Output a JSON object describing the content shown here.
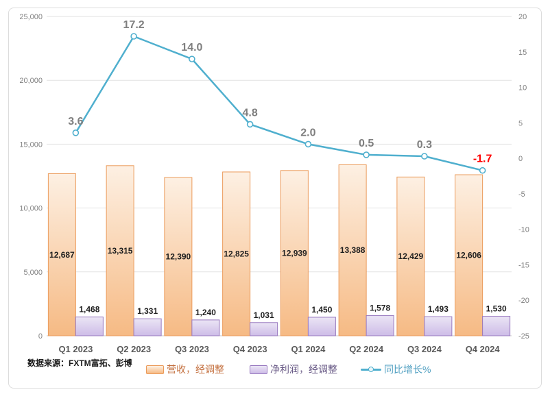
{
  "source_note": "数据来源：FXTM富拓、彭博",
  "legend": {
    "items": [
      {
        "name": "revenue",
        "label": "营收，经调整"
      },
      {
        "name": "profit",
        "label": "净利润，经调整"
      },
      {
        "name": "yoy",
        "label": "同比增长%"
      }
    ]
  },
  "colors": {
    "revenue_border": "#EB9B5B",
    "revenue_fill_top": "#FDF0E3",
    "revenue_fill_bottom": "#F6BA84",
    "profit_border": "#9879BF",
    "profit_fill_top": "#EBE5F5",
    "profit_fill_bottom": "#CDBCE7",
    "line": "#4FAFCE",
    "marker_fill": "#FFFFFF",
    "grid": "#E2E2E2",
    "axis_line": "#C6C6C6",
    "tick_text": "#808080",
    "xaxis_text": "#595959",
    "bar_label_text": "#1F1F1F",
    "line_label_gray": "#7F7F7F",
    "line_label_red": "#FF0000"
  },
  "chart_data": {
    "type": "combo",
    "categories": [
      "Q1 2023",
      "Q2 2023",
      "Q3 2023",
      "Q4 2023",
      "Q1 2024",
      "Q2 2024",
      "Q3 2024",
      "Q4 2024"
    ],
    "series": [
      {
        "name": "营收，经调整",
        "type": "bar",
        "axis": "left",
        "values": [
          12687,
          13315,
          12390,
          12825,
          12939,
          13388,
          12429,
          12606
        ],
        "labels": [
          "12,687",
          "13,315",
          "12,390",
          "12,825",
          "12,939",
          "13,388",
          "12,429",
          "12,606"
        ]
      },
      {
        "name": "净利润，经调整",
        "type": "bar",
        "axis": "left",
        "values": [
          1468,
          1331,
          1240,
          1031,
          1450,
          1578,
          1493,
          1530
        ],
        "labels": [
          "1,468",
          "1,331",
          "1,240",
          "1,031",
          "1,450",
          "1,578",
          "1,493",
          "1,530"
        ]
      },
      {
        "name": "同比增长%",
        "type": "line",
        "axis": "right",
        "values": [
          3.6,
          17.2,
          14.0,
          4.8,
          2.0,
          0.5,
          0.3,
          -1.7
        ],
        "labels": [
          "3.6",
          "17.2",
          "14.0",
          "4.8",
          "2.0",
          "0.5",
          "0.3",
          "-1.7"
        ],
        "label_colors": [
          "gray",
          "gray",
          "gray",
          "gray",
          "gray",
          "gray",
          "gray",
          "red"
        ]
      }
    ],
    "left_axis": {
      "min": 0,
      "max": 25000,
      "tick_values": [
        0,
        5000,
        10000,
        15000,
        20000,
        25000
      ],
      "tick_labels": [
        "0",
        "5,000",
        "10,000",
        "15,000",
        "20,000",
        "25,000"
      ]
    },
    "right_axis": {
      "min": -25,
      "max": 20,
      "tick_values": [
        20,
        15,
        10,
        5,
        0,
        -5,
        -10,
        -15,
        -20,
        -25
      ],
      "tick_labels": [
        "20",
        "15",
        "10",
        "5",
        "0",
        "-5",
        "-10",
        "-15",
        "-20",
        "-25"
      ]
    },
    "grid": true,
    "legend_position": "bottom"
  }
}
